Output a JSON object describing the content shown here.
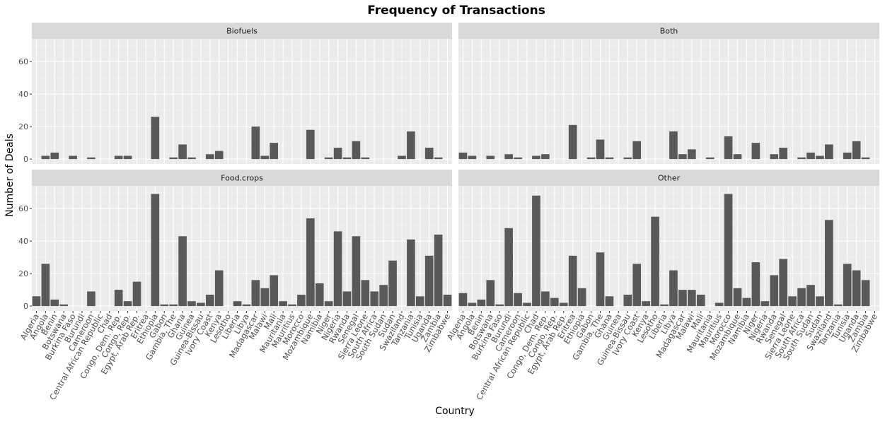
{
  "chart_data": {
    "type": "bar",
    "title": "Frequency of Transactions",
    "xlabel": "Country",
    "ylabel": "Number of Deals",
    "ylim": [
      -3,
      74
    ],
    "yticks": [
      0,
      20,
      40,
      60
    ],
    "grid": true,
    "legend": "none",
    "bar_color": "#595959",
    "panel_bg": "#ebebeb",
    "strip_bg": "#d9d9d9",
    "categories": [
      "Algeria",
      "Angola",
      "Benin",
      "Botswana",
      "Burkina Faso",
      "Burundi",
      "Cameroon",
      "Central African Republic",
      "Chad",
      "Congo, Dem. Rep.",
      "Congo, Rep.",
      "Egypt, Arab Rep.",
      "Eritrea",
      "Ethiopia",
      "Gabon",
      "Gambia, The",
      "Ghana",
      "Guinea",
      "Guinea-Bissau",
      "Ivory Coast",
      "Kenya",
      "Lesotho",
      "Liberia",
      "Libya",
      "Madagascar",
      "Malawi",
      "Mali",
      "Mauritania",
      "Mauritius",
      "Morocco",
      "Mozambique",
      "Namibia",
      "Niger",
      "Nigeria",
      "Rwanda",
      "Senegal",
      "Sierra Leone",
      "South Africa",
      "South Sudan",
      "Sudan",
      "Swaziland",
      "Tanzania",
      "Tunisia",
      "Uganda",
      "Zambia",
      "Zimbabwe"
    ],
    "panels": [
      {
        "name": "Biofuels",
        "values": [
          0,
          2,
          4,
          0,
          2,
          0,
          1,
          0,
          0,
          2,
          2,
          0,
          0,
          26,
          0,
          1,
          9,
          1,
          0,
          3,
          5,
          0,
          0,
          0,
          20,
          2,
          10,
          0,
          0,
          0,
          18,
          0,
          1,
          7,
          1,
          11,
          1,
          0,
          0,
          0,
          2,
          17,
          0,
          7,
          1,
          0
        ]
      },
      {
        "name": "Both",
        "values": [
          4,
          2,
          0,
          2,
          0,
          3,
          1,
          0,
          2,
          3,
          0,
          0,
          21,
          0,
          1,
          12,
          1,
          0,
          1,
          11,
          0,
          0,
          0,
          17,
          3,
          6,
          0,
          1,
          0,
          14,
          3,
          0,
          10,
          0,
          3,
          7,
          0,
          1,
          4,
          2,
          9,
          0,
          4,
          11,
          1,
          0
        ]
      },
      {
        "name": "Food.crops",
        "values": [
          6,
          26,
          4,
          1,
          0,
          0,
          9,
          0,
          0,
          10,
          3,
          15,
          0,
          69,
          1,
          1,
          43,
          3,
          2,
          7,
          22,
          0,
          3,
          1,
          16,
          11,
          19,
          3,
          1,
          7,
          54,
          14,
          3,
          46,
          9,
          43,
          16,
          9,
          13,
          28,
          0,
          41,
          6,
          31,
          44,
          7
        ]
      },
      {
        "name": "Other",
        "values": [
          8,
          2,
          4,
          16,
          1,
          48,
          8,
          2,
          68,
          9,
          5,
          2,
          31,
          11,
          0,
          33,
          6,
          0,
          7,
          26,
          3,
          55,
          1,
          22,
          10,
          10,
          7,
          0,
          2,
          69,
          11,
          5,
          27,
          3,
          19,
          29,
          6,
          11,
          13,
          6,
          53,
          1,
          26,
          22,
          16,
          0
        ]
      }
    ]
  }
}
